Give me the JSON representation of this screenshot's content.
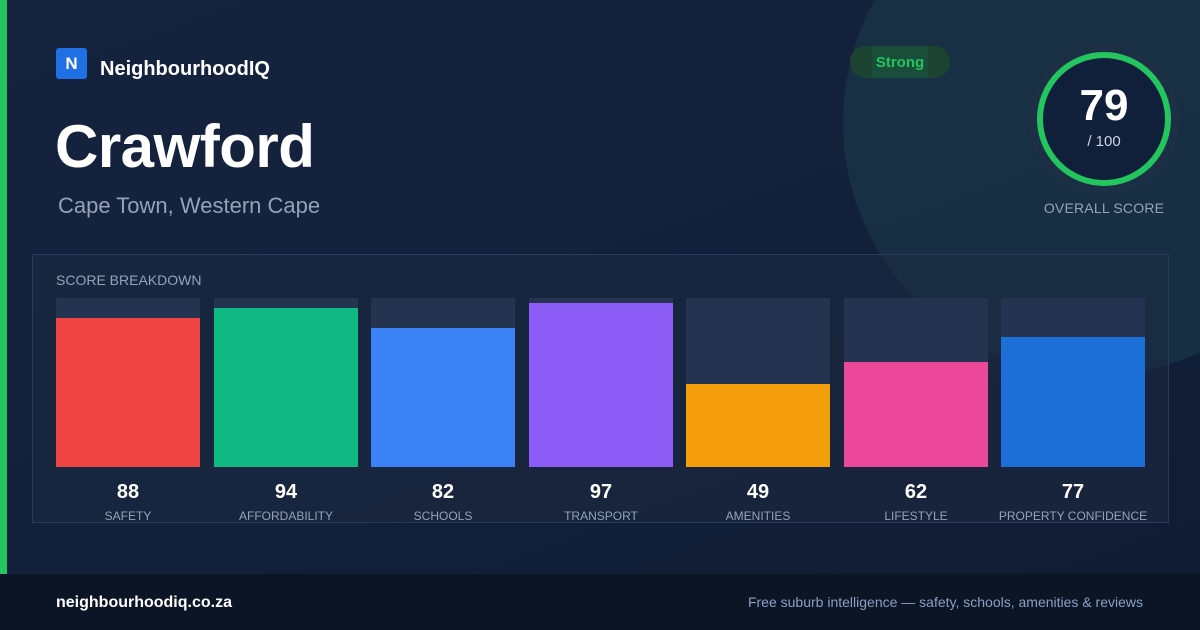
{
  "brand": {
    "logo_letter": "N",
    "name": "NeighbourhoodIQ"
  },
  "suburb": {
    "name": "Crawford",
    "location": "Cape Town, Western Cape"
  },
  "badge": {
    "label": "Strong"
  },
  "overall": {
    "score": "79",
    "max": "/ 100",
    "label": "OVERALL SCORE",
    "fraction": 0.79,
    "color": "#22c55e"
  },
  "breakdown": {
    "title": "SCORE BREAKDOWN",
    "items": [
      {
        "label": "SAFETY",
        "value": "88",
        "score": 88,
        "color": "#ef4444"
      },
      {
        "label": "AFFORDABILITY",
        "value": "94",
        "score": 94,
        "color": "#10b981"
      },
      {
        "label": "SCHOOLS",
        "value": "82",
        "score": 82,
        "color": "#3b82f6"
      },
      {
        "label": "TRANSPORT",
        "value": "97",
        "score": 97,
        "color": "#8b5cf6"
      },
      {
        "label": "AMENITIES",
        "value": "49",
        "score": 49,
        "color": "#f59e0b"
      },
      {
        "label": "LIFESTYLE",
        "value": "62",
        "score": 62,
        "color": "#ec4899"
      },
      {
        "label": "PROPERTY CONFIDENCE",
        "value": "77",
        "score": 77,
        "color": "#1d6fd8"
      }
    ]
  },
  "footer": {
    "domain": "neighbourhoodiq.co.za",
    "tagline": "Free suburb intelligence — safety, schools, amenities & reviews"
  }
}
